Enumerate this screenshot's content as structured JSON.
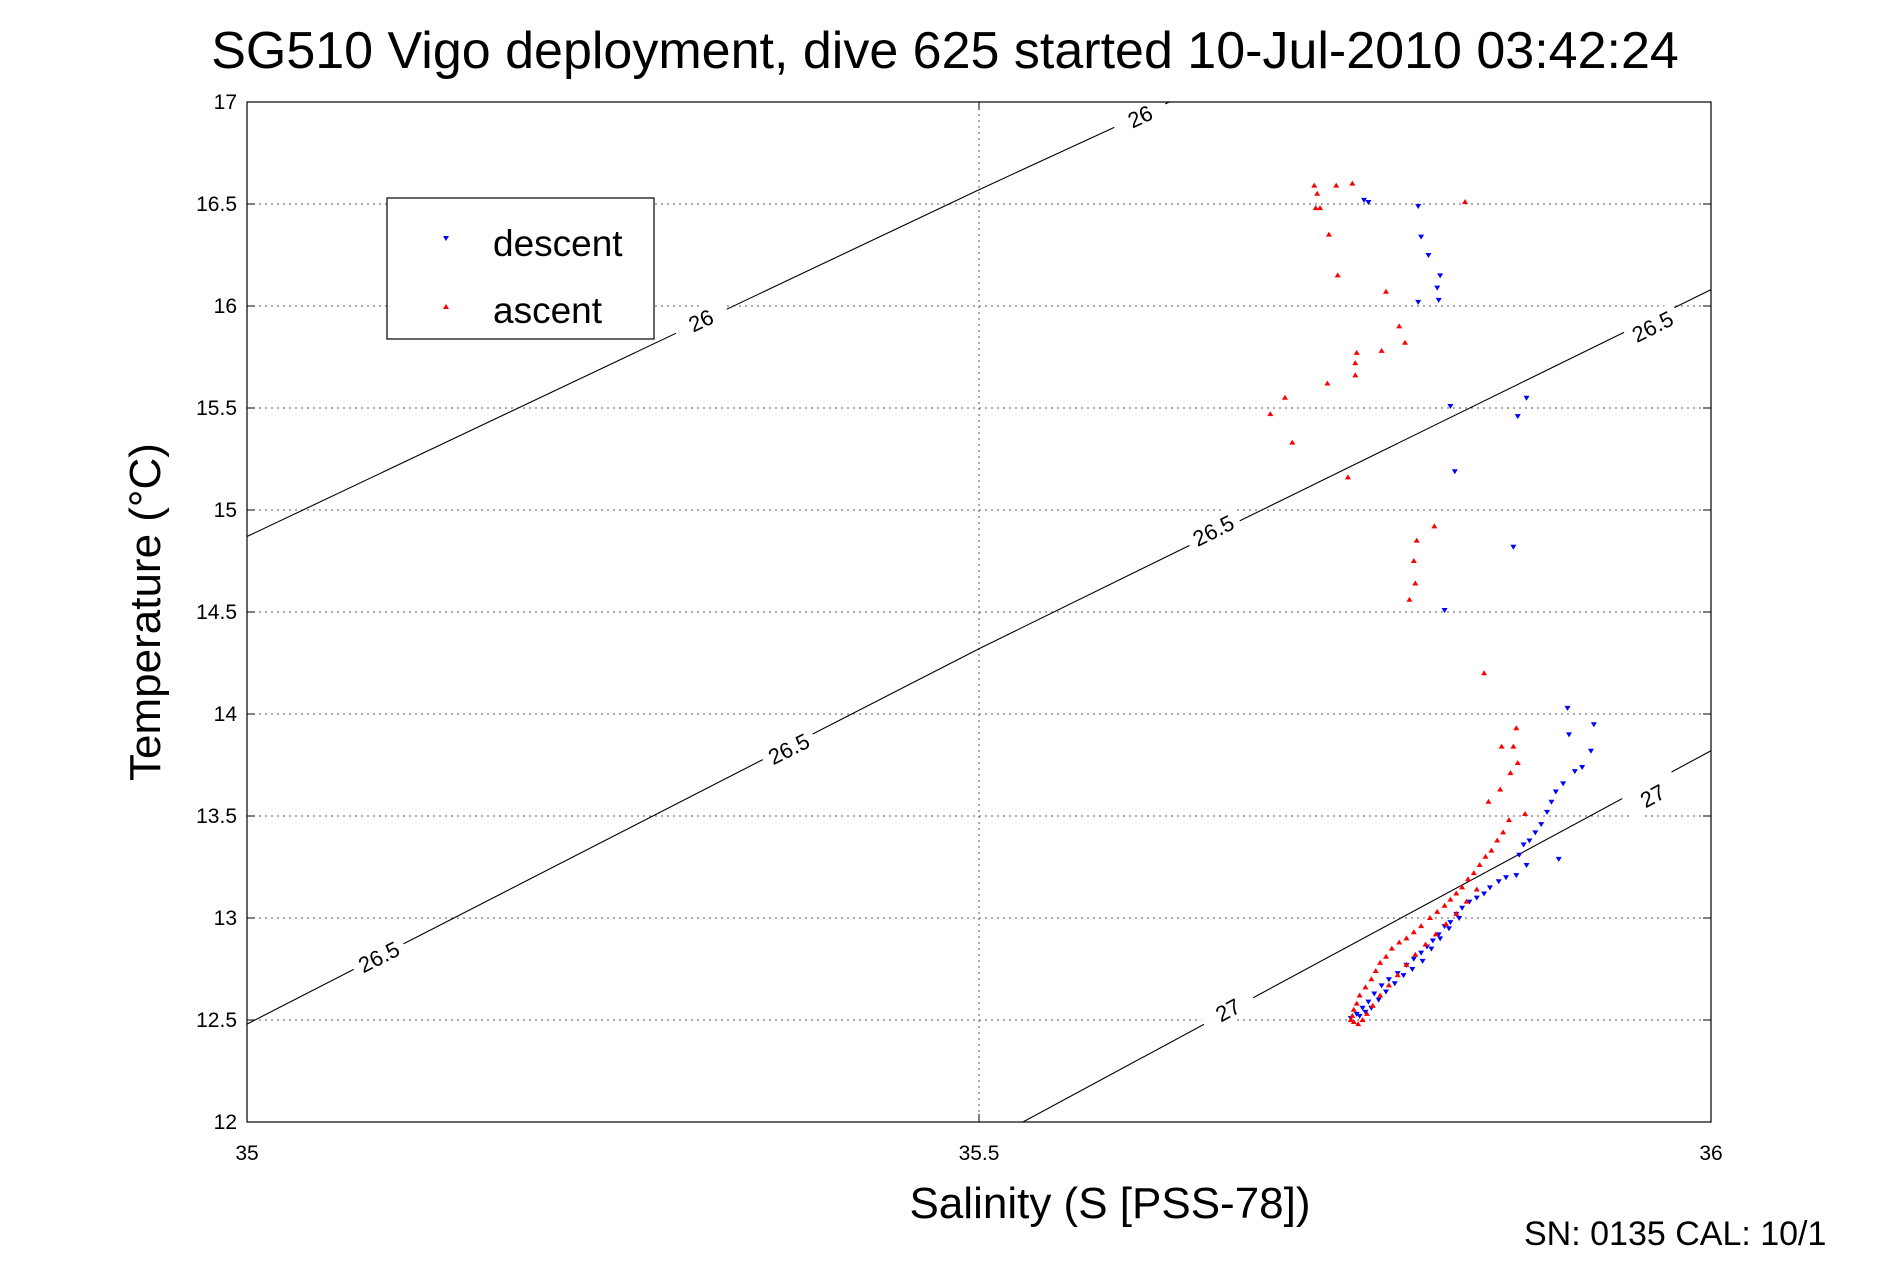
{
  "chart_data": {
    "type": "scatter",
    "title": "SG510 Vigo deployment, dive 625 started 10-Jul-2010 03:42:24",
    "xlabel": "Salinity (S [PSS-78])",
    "ylabel": "Temperature (°C)",
    "xlim": [
      35,
      36
    ],
    "ylim": [
      12,
      17
    ],
    "x_ticks": [
      "35",
      "35.5",
      "36"
    ],
    "y_ticks": [
      "12",
      "12.5",
      "13",
      "13.5",
      "14",
      "14.5",
      "15",
      "15.5",
      "16",
      "16.5",
      "17"
    ],
    "grid": true,
    "legend_position": "top-left",
    "footer": "SN: 0135  CAL: 10/1",
    "density_contours": [
      {
        "level": "26",
        "points": [
          [
            35.0,
            14.87
          ],
          [
            35.5,
            16.57
          ],
          [
            35.63,
            17.0
          ]
        ],
        "labels": [
          [
            35.31,
            15.93
          ],
          [
            35.61,
            16.93
          ]
        ]
      },
      {
        "level": "26.5",
        "points": [
          [
            35.0,
            12.48
          ],
          [
            35.5,
            14.32
          ],
          [
            36.0,
            16.08
          ]
        ],
        "labels": [
          [
            35.09,
            12.81
          ],
          [
            35.37,
            13.83
          ],
          [
            35.66,
            14.9
          ],
          [
            35.96,
            15.9
          ]
        ]
      },
      {
        "level": "27",
        "points": [
          [
            35.53,
            12.0
          ],
          [
            36.0,
            13.82
          ]
        ],
        "labels": [
          [
            35.67,
            12.55
          ],
          [
            35.96,
            13.6
          ]
        ]
      }
    ],
    "series": [
      {
        "name": "descent",
        "color": "#0000ff",
        "marker": "triangle-down",
        "points": [
          [
            35.763,
            16.52
          ],
          [
            35.766,
            16.51
          ],
          [
            35.8,
            16.49
          ],
          [
            35.802,
            16.34
          ],
          [
            35.807,
            16.25
          ],
          [
            35.813,
            16.09
          ],
          [
            35.815,
            16.15
          ],
          [
            35.814,
            16.03
          ],
          [
            35.8,
            16.02
          ],
          [
            35.822,
            15.51
          ],
          [
            35.874,
            15.55
          ],
          [
            35.868,
            15.46
          ],
          [
            35.825,
            15.19
          ],
          [
            35.865,
            14.82
          ],
          [
            35.818,
            14.51
          ],
          [
            35.902,
            14.03
          ],
          [
            35.92,
            13.95
          ],
          [
            35.903,
            13.9
          ],
          [
            35.918,
            13.82
          ],
          [
            35.912,
            13.74
          ],
          [
            35.907,
            13.72
          ],
          [
            35.899,
            13.66
          ],
          [
            35.894,
            13.62
          ],
          [
            35.891,
            13.57
          ],
          [
            35.888,
            13.52
          ],
          [
            35.884,
            13.46
          ],
          [
            35.88,
            13.42
          ],
          [
            35.876,
            13.38
          ],
          [
            35.872,
            13.36
          ],
          [
            35.869,
            13.31
          ],
          [
            35.896,
            13.29
          ],
          [
            35.874,
            13.26
          ],
          [
            35.867,
            13.21
          ],
          [
            35.86,
            13.2
          ],
          [
            35.855,
            13.18
          ],
          [
            35.849,
            13.15
          ],
          [
            35.845,
            13.12
          ],
          [
            35.84,
            13.1
          ],
          [
            35.835,
            13.08
          ],
          [
            35.83,
            13.05
          ],
          [
            35.826,
            13.02
          ],
          [
            35.822,
            12.98
          ],
          [
            35.818,
            12.96
          ],
          [
            35.814,
            12.92
          ],
          [
            35.81,
            12.89
          ],
          [
            35.806,
            12.86
          ],
          [
            35.802,
            12.83
          ],
          [
            35.797,
            12.8
          ],
          [
            35.792,
            12.77
          ],
          [
            35.786,
            12.73
          ],
          [
            35.78,
            12.7
          ],
          [
            35.775,
            12.67
          ],
          [
            35.77,
            12.63
          ],
          [
            35.766,
            12.59
          ],
          [
            35.762,
            12.56
          ],
          [
            35.758,
            12.53
          ],
          [
            35.754,
            12.51
          ],
          [
            35.76,
            12.52
          ],
          [
            35.764,
            12.54
          ],
          [
            35.768,
            12.56
          ],
          [
            35.773,
            12.6
          ],
          [
            35.778,
            12.64
          ],
          [
            35.784,
            12.68
          ],
          [
            35.79,
            12.72
          ],
          [
            35.796,
            12.75
          ],
          [
            35.803,
            12.79
          ],
          [
            35.809,
            12.85
          ],
          [
            35.815,
            12.9
          ],
          [
            35.821,
            12.95
          ],
          [
            35.828,
            13.0
          ]
        ]
      },
      {
        "name": "ascent",
        "color": "#ff0000",
        "marker": "triangle-up",
        "points": [
          [
            35.729,
            16.59
          ],
          [
            35.744,
            16.59
          ],
          [
            35.755,
            16.6
          ],
          [
            35.731,
            16.55
          ],
          [
            35.73,
            16.48
          ],
          [
            35.733,
            16.48
          ],
          [
            35.832,
            16.51
          ],
          [
            35.739,
            16.35
          ],
          [
            35.745,
            16.15
          ],
          [
            35.778,
            16.07
          ],
          [
            35.787,
            15.9
          ],
          [
            35.791,
            15.82
          ],
          [
            35.775,
            15.78
          ],
          [
            35.758,
            15.77
          ],
          [
            35.757,
            15.72
          ],
          [
            35.738,
            15.62
          ],
          [
            35.757,
            15.66
          ],
          [
            35.709,
            15.55
          ],
          [
            35.699,
            15.47
          ],
          [
            35.714,
            15.33
          ],
          [
            35.752,
            15.16
          ],
          [
            35.811,
            14.92
          ],
          [
            35.799,
            14.85
          ],
          [
            35.797,
            14.75
          ],
          [
            35.798,
            14.64
          ],
          [
            35.794,
            14.56
          ],
          [
            35.845,
            14.2
          ],
          [
            35.867,
            13.93
          ],
          [
            35.857,
            13.84
          ],
          [
            35.865,
            13.84
          ],
          [
            35.868,
            13.76
          ],
          [
            35.863,
            13.71
          ],
          [
            35.856,
            13.63
          ],
          [
            35.848,
            13.57
          ],
          [
            35.873,
            13.51
          ],
          [
            35.862,
            13.48
          ],
          [
            35.858,
            13.42
          ],
          [
            35.854,
            13.38
          ],
          [
            35.85,
            13.33
          ],
          [
            35.846,
            13.3
          ],
          [
            35.842,
            13.26
          ],
          [
            35.838,
            13.22
          ],
          [
            35.834,
            13.19
          ],
          [
            35.83,
            13.15
          ],
          [
            35.826,
            13.12
          ],
          [
            35.822,
            13.09
          ],
          [
            35.818,
            13.06
          ],
          [
            35.813,
            13.03
          ],
          [
            35.808,
            13.0
          ],
          [
            35.802,
            12.96
          ],
          [
            35.797,
            12.93
          ],
          [
            35.792,
            12.9
          ],
          [
            35.787,
            12.88
          ],
          [
            35.782,
            12.85
          ],
          [
            35.778,
            12.81
          ],
          [
            35.774,
            12.78
          ],
          [
            35.771,
            12.74
          ],
          [
            35.768,
            12.7
          ],
          [
            35.764,
            12.66
          ],
          [
            35.76,
            12.62
          ],
          [
            35.758,
            12.58
          ],
          [
            35.756,
            12.55
          ],
          [
            35.755,
            12.52
          ],
          [
            35.754,
            12.5
          ],
          [
            35.756,
            12.49
          ],
          [
            35.759,
            12.48
          ],
          [
            35.762,
            12.5
          ],
          [
            35.765,
            12.53
          ],
          [
            35.769,
            12.57
          ],
          [
            35.774,
            12.62
          ],
          [
            35.78,
            12.67
          ],
          [
            35.786,
            12.72
          ],
          [
            35.792,
            12.77
          ],
          [
            35.798,
            12.82
          ],
          [
            35.805,
            12.87
          ],
          [
            35.812,
            12.92
          ],
          [
            35.819,
            12.97
          ],
          [
            35.826,
            13.02
          ],
          [
            35.833,
            13.08
          ],
          [
            35.84,
            13.14
          ]
        ]
      }
    ]
  }
}
